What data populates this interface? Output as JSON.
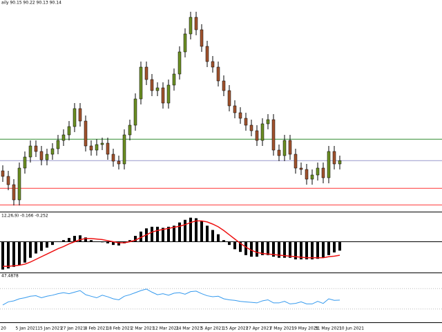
{
  "chart_data": [
    {
      "type": "candlestick",
      "title": "aily 90.15 90.22 90.13 90.14",
      "open": [
        89.4,
        89.0,
        88.4,
        87.3,
        89.6,
        90.4,
        91.2,
        90.8,
        90.2,
        90.6,
        91.0,
        91.6,
        92.0,
        92.6,
        93.9,
        93.0,
        91.2,
        90.9,
        91.3,
        91.4,
        90.6,
        90.1,
        89.9,
        92.0,
        92.7,
        94.6,
        96.9,
        96.0,
        95.2,
        95.4,
        94.3,
        95.6,
        96.4,
        98.0,
        99.3,
        100.5,
        99.6,
        98.4,
        97.3,
        96.9,
        95.9,
        95.2,
        94.1,
        93.6,
        93.2,
        92.7,
        92.3,
        91.6,
        92.8,
        93.1,
        90.9,
        90.5,
        91.6,
        90.6,
        89.6,
        89.5,
        88.8,
        89.1,
        89.6,
        88.9,
        90.8,
        89.9
      ],
      "high": [
        89.8,
        89.4,
        88.8,
        90.0,
        90.8,
        91.6,
        91.6,
        91.2,
        91.0,
        91.4,
        92.0,
        92.4,
        93.0,
        94.3,
        94.3,
        93.4,
        91.6,
        91.7,
        91.8,
        91.8,
        91.0,
        90.5,
        92.4,
        93.1,
        95.0,
        97.3,
        97.3,
        96.4,
        95.8,
        95.8,
        96.0,
        96.8,
        98.4,
        99.7,
        100.9,
        100.9,
        100.0,
        98.8,
        97.7,
        97.3,
        96.3,
        95.6,
        94.5,
        94.0,
        93.6,
        93.1,
        92.7,
        93.2,
        93.5,
        93.5,
        91.3,
        92.0,
        92.0,
        91.0,
        90.0,
        89.9,
        89.5,
        90.0,
        90.0,
        91.2,
        91.2,
        90.5
      ],
      "low": [
        88.6,
        88.0,
        86.9,
        86.9,
        89.2,
        90.0,
        90.4,
        89.8,
        89.8,
        90.2,
        90.6,
        91.2,
        91.6,
        92.2,
        92.6,
        90.8,
        90.5,
        90.5,
        90.9,
        90.2,
        89.7,
        89.5,
        89.5,
        91.6,
        92.3,
        94.2,
        95.6,
        94.8,
        94.8,
        93.9,
        93.9,
        95.2,
        96.0,
        97.6,
        98.9,
        99.2,
        98.0,
        96.9,
        96.5,
        95.5,
        94.8,
        93.7,
        93.2,
        92.8,
        92.3,
        91.9,
        91.2,
        91.2,
        92.4,
        90.5,
        90.1,
        90.1,
        90.2,
        89.2,
        89.1,
        88.4,
        88.4,
        88.7,
        88.5,
        88.5,
        89.5,
        89.5
      ],
      "close": [
        89.0,
        88.4,
        87.3,
        89.6,
        90.4,
        91.2,
        90.8,
        90.2,
        90.6,
        91.0,
        91.6,
        92.0,
        92.6,
        93.9,
        93.0,
        91.2,
        90.9,
        91.3,
        91.4,
        90.6,
        90.1,
        89.9,
        92.0,
        92.7,
        94.6,
        96.9,
        96.0,
        95.2,
        95.4,
        94.3,
        95.6,
        96.4,
        98.0,
        99.3,
        100.5,
        99.6,
        98.4,
        97.3,
        96.9,
        95.9,
        95.2,
        94.1,
        93.6,
        93.2,
        92.7,
        92.3,
        91.6,
        92.8,
        93.1,
        90.9,
        90.5,
        91.6,
        90.6,
        89.6,
        89.5,
        88.8,
        89.1,
        89.6,
        88.9,
        90.8,
        89.9,
        90.14
      ],
      "up_color": "#6b8e23",
      "down_color": "#a0522d",
      "hlines": [
        {
          "value": 91.69,
          "color": "#2e8b2e"
        },
        {
          "value": 90.14,
          "color": "#9999cc"
        },
        {
          "value": 88.14,
          "color": "#ff3333"
        },
        {
          "value": 86.94,
          "color": "#ff3333"
        }
      ],
      "ylim": [
        86.5,
        101.75
      ],
      "x_labels": [
        "20",
        "5 Jan 2021",
        "15 Jan 2021",
        "27 Jan 2021",
        "8 Feb 2021",
        "18 Feb 2021",
        "2 Mar 2021",
        "12 Mar 2021",
        "24 Mar 2021",
        "5 Apr 2021",
        "15 Apr 2021",
        "27 Apr 2021",
        "7 May 2021",
        "19 May 2021",
        "31 May 2021",
        "10 Jun 2021"
      ]
    },
    {
      "type": "macd",
      "title": "12,26,9) -0.166 -0.252",
      "series": [
        {
          "kind": "bar",
          "color": "#000000",
          "values": [
            -0.52,
            -0.5,
            -0.47,
            -0.44,
            -0.39,
            -0.3,
            -0.22,
            -0.17,
            -0.11,
            -0.06,
            0.0,
            0.03,
            0.07,
            0.11,
            0.12,
            0.08,
            0.03,
            0.0,
            -0.01,
            -0.03,
            -0.06,
            -0.07,
            -0.03,
            0.03,
            0.11,
            0.19,
            0.25,
            0.28,
            0.28,
            0.26,
            0.28,
            0.3,
            0.36,
            0.41,
            0.45,
            0.44,
            0.39,
            0.3,
            0.22,
            0.14,
            0.03,
            -0.06,
            -0.14,
            -0.19,
            -0.25,
            -0.28,
            -0.28,
            -0.25,
            -0.25,
            -0.28,
            -0.3,
            -0.3,
            -0.3,
            -0.33,
            -0.33,
            -0.33,
            -0.33,
            -0.32,
            -0.3,
            -0.25,
            -0.2,
            -0.166
          ]
        },
        {
          "kind": "line",
          "color": "#ee1111",
          "values": [
            -0.46,
            -0.46,
            -0.45,
            -0.44,
            -0.42,
            -0.38,
            -0.33,
            -0.28,
            -0.23,
            -0.18,
            -0.13,
            -0.09,
            -0.04,
            0.0,
            0.04,
            0.06,
            0.06,
            0.05,
            0.04,
            0.02,
            0.0,
            -0.02,
            -0.02,
            0.0,
            0.03,
            0.08,
            0.13,
            0.18,
            0.21,
            0.23,
            0.25,
            0.27,
            0.29,
            0.32,
            0.36,
            0.39,
            0.39,
            0.37,
            0.33,
            0.28,
            0.21,
            0.13,
            0.05,
            -0.03,
            -0.1,
            -0.16,
            -0.2,
            -0.22,
            -0.23,
            -0.24,
            -0.25,
            -0.26,
            -0.27,
            -0.28,
            -0.29,
            -0.3,
            -0.3,
            -0.3,
            -0.3,
            -0.28,
            -0.27,
            -0.252
          ]
        }
      ],
      "ylim": [
        -0.55,
        0.55
      ]
    },
    {
      "type": "line",
      "title": "47.4878",
      "color": "#3399ee",
      "values": [
        38,
        44,
        46,
        50,
        52,
        55,
        56,
        52,
        55,
        57,
        60,
        62,
        60,
        63,
        66,
        58,
        55,
        52,
        57,
        54,
        50,
        48,
        55,
        58,
        62,
        66,
        69,
        63,
        58,
        60,
        57,
        61,
        62,
        59,
        64,
        65,
        60,
        56,
        54,
        55,
        50,
        48,
        47,
        45,
        44,
        43,
        42,
        46,
        48,
        42,
        42,
        45,
        40,
        41,
        44,
        40,
        40,
        45,
        41,
        50,
        47,
        47.4878
      ],
      "levels": [
        70,
        30
      ],
      "ylim": [
        0,
        100
      ]
    }
  ]
}
